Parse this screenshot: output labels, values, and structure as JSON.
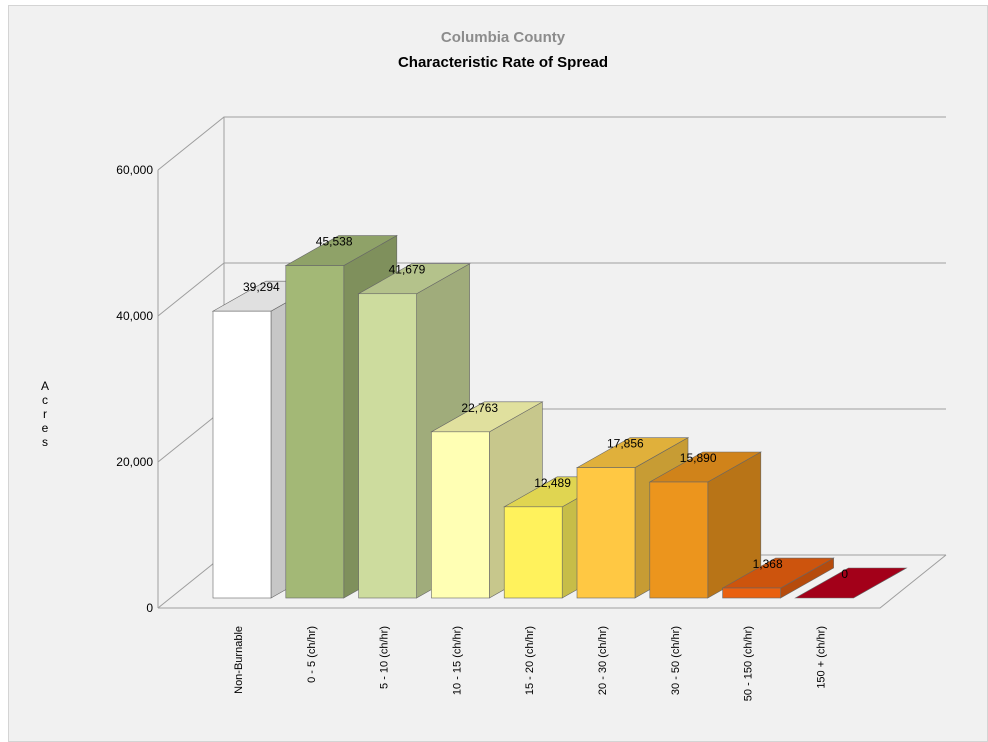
{
  "chart_data": {
    "type": "bar",
    "subtitle": "Columbia County",
    "title": "Characteristic Rate of Spread",
    "ylabel": "Acres",
    "xlabel": "",
    "ylim": [
      0,
      60000
    ],
    "yticks": [
      "0",
      "20,000",
      "40,000",
      "60,000"
    ],
    "categories": [
      "Non-Burnable",
      "0 - 5 (ch/hr)",
      "5 - 10 (ch/hr)",
      "10 - 15 (ch/hr)",
      "15 - 20 (ch/hr)",
      "20 - 30 (ch/hr)",
      "30 - 50 (ch/hr)",
      "50 - 150 (ch/hr)",
      "150 + (ch/hr)"
    ],
    "values": [
      39294,
      45538,
      41679,
      22763,
      12489,
      17856,
      15890,
      1368,
      0
    ],
    "value_labels": [
      "39,294",
      "45,538",
      "41,679",
      "22,763",
      "12,489",
      "17,856",
      "15,890",
      "1,368",
      "0"
    ],
    "colors": [
      "#ffffff",
      "#a3b876",
      "#cddc9e",
      "#ffffb4",
      "#fff25c",
      "#ffc843",
      "#ec951d",
      "#e9600f",
      "#b9001c"
    ],
    "grid": true,
    "legend": "none"
  }
}
